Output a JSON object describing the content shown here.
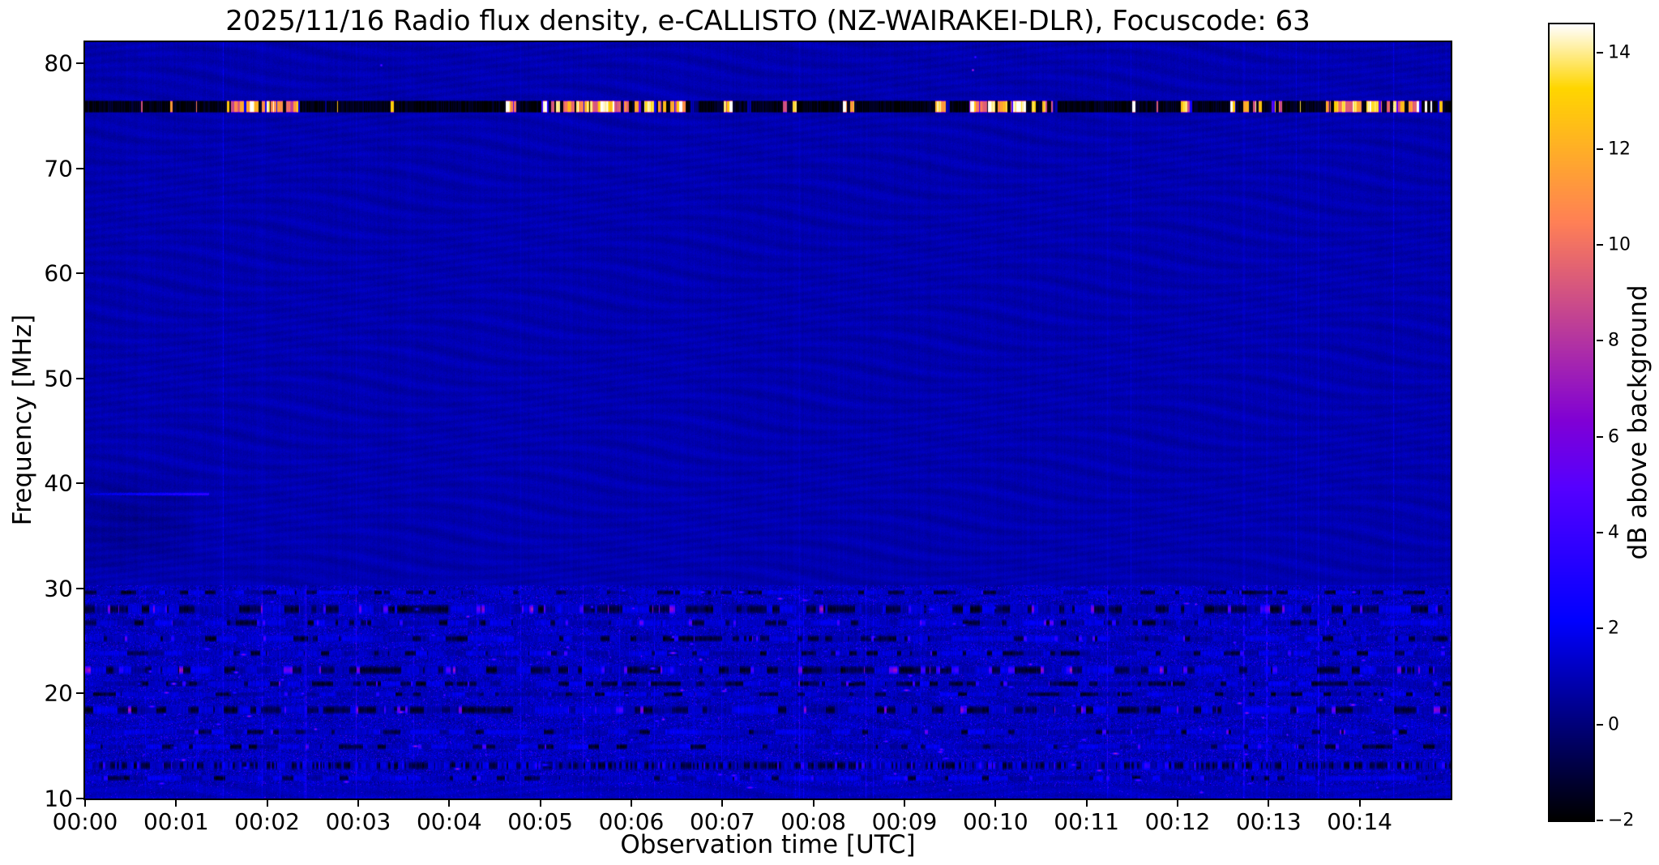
{
  "chart_data": {
    "type": "heatmap",
    "title": "2025/11/16  Radio flux density, e-CALLISTO (NZ-WAIRAKEI-DLR), Focuscode: 63",
    "xlabel": "Observation time [UTC]",
    "ylabel": "Frequency [MHz]",
    "x_ticks": [
      "00:00",
      "00:01",
      "00:02",
      "00:03",
      "00:04",
      "00:05",
      "00:06",
      "00:07",
      "00:08",
      "00:09",
      "00:10",
      "00:11",
      "00:12",
      "00:13",
      "00:14"
    ],
    "x_range_minutes": [
      0,
      15
    ],
    "y_ticks": [
      10,
      20,
      30,
      40,
      50,
      60,
      70,
      80
    ],
    "y_range_mhz": [
      10,
      82
    ],
    "grid": false,
    "colorbar": {
      "label": "dB above background",
      "ticks": [
        "−2",
        "0",
        "2",
        "4",
        "6",
        "8",
        "10",
        "12",
        "14"
      ],
      "vmin": -2,
      "vmax": 14.6,
      "colormap": "gnuplot2",
      "position": "right"
    },
    "background_db": 0.85,
    "features": {
      "description": "Quiet solar radio spectrogram: dark-blue background with faint wavy interference ripple; strong intermittent RFI stripe near 76 MHz (black carrier with saturated white/yellow bursts); broadband bursty terrestrial interference below ~30 MHz with magenta/pink hot spots; short faint emission line at 39 MHz near 00:00–00:01.",
      "low_band_top_mhz": 30.3,
      "rfi_band": {
        "center_mhz": 75.9,
        "half_width_mhz": 0.6,
        "bright_intervals_min": [
          [
            1.55,
            2.35
          ],
          [
            3.2,
            3.4
          ],
          [
            4.55,
            4.72
          ],
          [
            4.95,
            6.65
          ],
          [
            6.95,
            7.12
          ],
          [
            7.55,
            7.78
          ],
          [
            8.25,
            8.45
          ],
          [
            9.25,
            9.45
          ],
          [
            9.7,
            10.65
          ],
          [
            11.35,
            11.52
          ],
          [
            11.95,
            12.15
          ],
          [
            12.55,
            13.15
          ],
          [
            13.55,
            14.95
          ]
        ]
      },
      "drift_line": {
        "f_mhz": 39.0,
        "t_start_min": 0.05,
        "t_end_min": 1.35,
        "level_db": 3.4
      },
      "interference_bands_mhz": [
        {
          "f": 29.6,
          "w": 0.25,
          "p_dark": 0.5,
          "p_bright": 0.02,
          "bright_max": 4
        },
        {
          "f": 28.0,
          "w": 0.5,
          "p_dark": 0.45,
          "p_bright": 0.18,
          "bright_max": 8
        },
        {
          "f": 26.7,
          "w": 0.35,
          "p_dark": 0.3,
          "p_bright": 0.1,
          "bright_max": 6
        },
        {
          "f": 25.2,
          "w": 0.35,
          "p_dark": 0.25,
          "p_bright": 0.12,
          "bright_max": 6
        },
        {
          "f": 23.8,
          "w": 0.3,
          "p_dark": 0.3,
          "p_bright": 0.06,
          "bright_max": 5
        },
        {
          "f": 22.2,
          "w": 0.45,
          "p_dark": 0.4,
          "p_bright": 0.22,
          "bright_max": 8
        },
        {
          "f": 20.9,
          "w": 0.3,
          "p_dark": 0.5,
          "p_bright": 0.08,
          "bright_max": 6
        },
        {
          "f": 19.9,
          "w": 0.25,
          "p_dark": 0.25,
          "p_bright": 0.05,
          "bright_max": 5
        },
        {
          "f": 18.4,
          "w": 0.45,
          "p_dark": 0.45,
          "p_bright": 0.18,
          "bright_max": 8
        },
        {
          "f": 16.3,
          "w": 0.3,
          "p_dark": 0.2,
          "p_bright": 0.08,
          "bright_max": 7
        },
        {
          "f": 14.9,
          "w": 0.3,
          "p_dark": 0.25,
          "p_bright": 0.06,
          "bright_max": 5
        },
        {
          "f": 13.1,
          "w": 0.45,
          "p_dark": 0.5,
          "p_bright": 0.05,
          "bright_max": 4,
          "dense": true
        },
        {
          "f": 11.9,
          "w": 0.3,
          "p_dark": 0.2,
          "p_bright": 0.04,
          "bright_max": 4
        }
      ],
      "point_events": [
        {
          "t": 3.25,
          "f": 79.8,
          "db": 6
        },
        {
          "t": 9.75,
          "f": 79.4,
          "db": 9
        },
        {
          "t": 9.78,
          "f": 80.6,
          "db": 5
        }
      ]
    }
  }
}
